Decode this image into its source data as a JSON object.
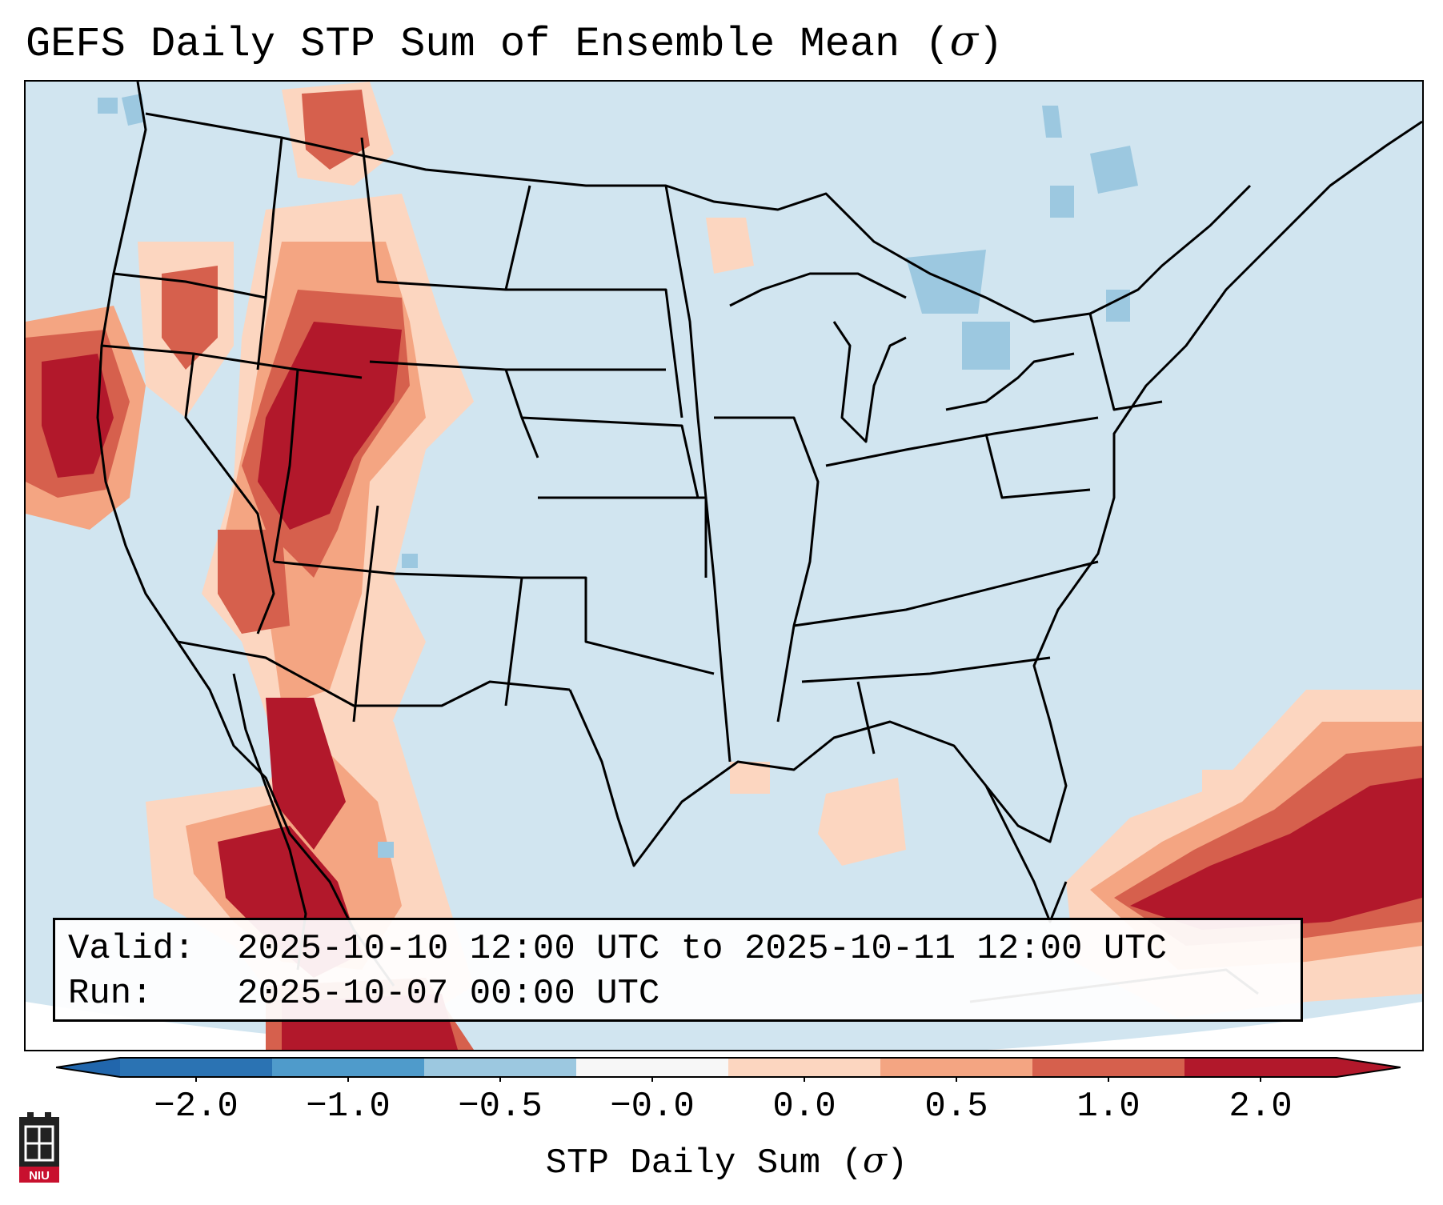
{
  "title_prefix": "GEFS Daily STP Sum of Ensemble Mean (",
  "title_symbol": "σ",
  "title_suffix": ")",
  "info": {
    "valid_label": "Valid:",
    "valid_text": "2025-10-10 12:00 UTC to 2025-10-11 12:00 UTC",
    "run_label": "Run:",
    "run_text": "2025-10-07 00:00 UTC"
  },
  "colorbar": {
    "label_prefix": "STP Daily Sum (",
    "label_symbol": "σ",
    "label_suffix": ")",
    "ticks": [
      "−2.0",
      "−1.0",
      "−0.5",
      "−0.0",
      "0.0",
      "0.5",
      "1.0",
      "2.0"
    ],
    "colors": [
      "#2b73b3",
      "#4f9bcb",
      "#9cc8e0",
      "#f7f7f7",
      "#fcd6c0",
      "#f4a582",
      "#d6604d",
      "#b2182b"
    ],
    "neutral_fill": "#d1e5f0",
    "extend_low_color": "#2166ac",
    "extend_high_color": "#b2182b"
  },
  "logo": {
    "text": "NIU",
    "color": "#c8102e"
  },
  "map": {
    "region": "Continental United States",
    "background": "#d1e5f0",
    "high_anomaly_areas": [
      "Pacific Northwest",
      "Great Basin",
      "Desert Southwest",
      "Baja California / Sonora",
      "Western Caribbean / Cuba"
    ],
    "low_anomaly_areas": [
      "Great Lakes",
      "Quebec"
    ]
  }
}
